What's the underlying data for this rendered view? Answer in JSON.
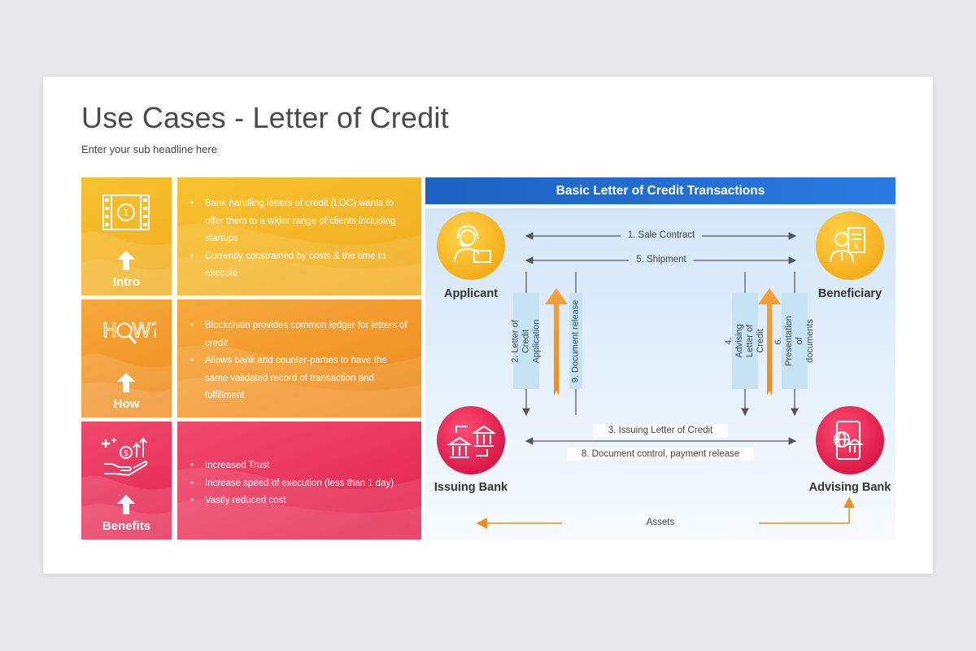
{
  "header": {
    "title": "Use Cases - Letter of Credit",
    "subtitle": "Enter your sub headline here"
  },
  "rows": [
    {
      "label": "Intro",
      "icon": "film-coin-icon",
      "bullets": [
        "Bank handling letters of credit (LOC) wants to offer them to a wider range of clients including startups",
        "Currently constrained by costs & the time to execute"
      ]
    },
    {
      "label": "How",
      "icon": "how-magnifier-icon",
      "bullets": [
        "Blockchain provides common ledger for letters of credit",
        "Allows bank and counter-parties to have the same validated record of transaction and fulfillment"
      ]
    },
    {
      "label": "Benefits",
      "icon": "hand-coins-growth-icon",
      "bullets": [
        "Increased Trust",
        "Increase speed of execution (less than 1 day)",
        "Vastly reduced cost"
      ]
    }
  ],
  "diagram": {
    "title": "Basic Letter of Credit Transactions",
    "nodes": {
      "applicant": "Applicant",
      "beneficiary": "Beneficiary",
      "issuing_bank": "Issuing Bank",
      "advising_bank": "Advising Bank"
    },
    "flows": {
      "f1": "1. Sale Contract",
      "f2": "2. Letter of Credit Application",
      "f3": "3. Issuing Letter of Credit",
      "f4": "4. Advising Letter of Credit",
      "f5": "5. Shipment",
      "f6": "6. Presentation of documents",
      "f8": "8. Document control, payment release",
      "f9": "9. Document release",
      "assets": "Assets"
    },
    "colors": {
      "yellow": "#f5b818",
      "orange": "#ef8a1e",
      "pink": "#e2224d",
      "blue": "#1d61c2"
    }
  }
}
